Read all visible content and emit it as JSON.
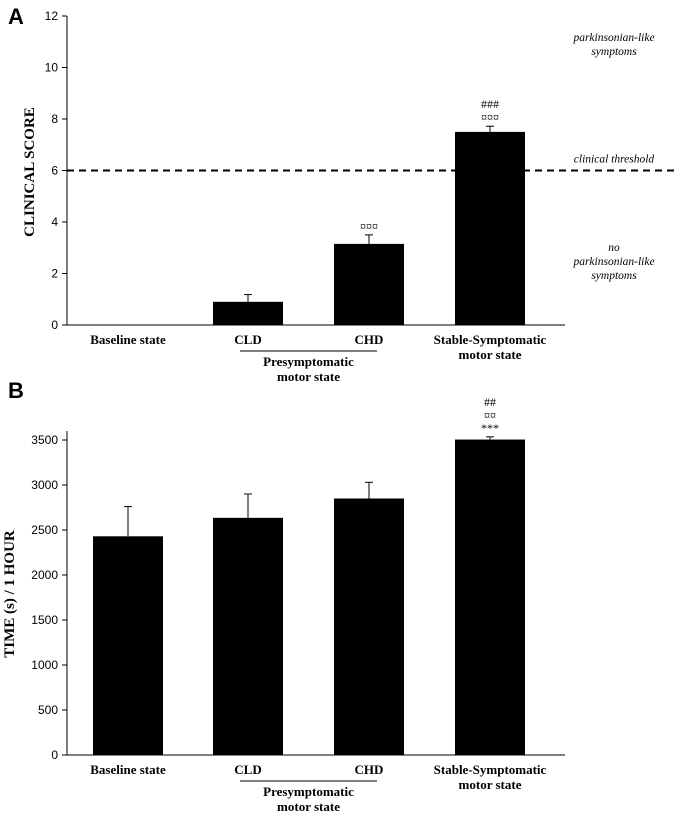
{
  "chart_data": [
    {
      "panel": "A",
      "type": "bar",
      "ylabel": "CLINICAL SCORE",
      "ylim": [
        0,
        12
      ],
      "yticks": [
        0,
        2,
        4,
        6,
        8,
        10,
        12
      ],
      "categories": [
        "Baseline state",
        "CLD",
        "CHD",
        "Stable-Symptomatic motor state"
      ],
      "category_lines": [
        [
          "Baseline state"
        ],
        [
          "CLD"
        ],
        [
          "CHD"
        ],
        [
          "Stable-Symptomatic",
          "motor state"
        ]
      ],
      "values": [
        0,
        0.9,
        3.15,
        7.5
      ],
      "errors": [
        0,
        0.28,
        0.35,
        0.22
      ],
      "significance": [
        [],
        [],
        [
          "¤¤¤"
        ],
        [
          "###",
          "¤¤¤"
        ]
      ],
      "group_label": [
        "Presymptomatic",
        "motor state"
      ],
      "group_members": [
        1,
        2
      ],
      "threshold": {
        "value": 6,
        "label": "clinical threshold"
      },
      "annotations": {
        "above": [
          "parkinsonian-like",
          "symptoms"
        ],
        "below": [
          "no",
          "parkinsonian-like",
          "symptoms"
        ]
      }
    },
    {
      "panel": "B",
      "type": "bar",
      "ylabel": "TIME (s) / 1 HOUR",
      "ylim": [
        0,
        3600
      ],
      "yticks": [
        0,
        500,
        1000,
        1500,
        2000,
        2500,
        3000,
        3500
      ],
      "categories": [
        "Baseline state",
        "CLD",
        "CHD",
        "Stable-Symptomatic motor state"
      ],
      "category_lines": [
        [
          "Baseline state"
        ],
        [
          "CLD"
        ],
        [
          "CHD"
        ],
        [
          "Stable-Symptomatic",
          "motor state"
        ]
      ],
      "values": [
        2430,
        2635,
        2850,
        3505
      ],
      "errors": [
        330,
        265,
        180,
        30
      ],
      "significance": [
        [],
        [],
        [],
        [
          "##",
          "¤¤",
          "***"
        ]
      ],
      "group_label": [
        "Presymptomatic",
        "motor state"
      ],
      "group_members": [
        1,
        2
      ]
    }
  ]
}
